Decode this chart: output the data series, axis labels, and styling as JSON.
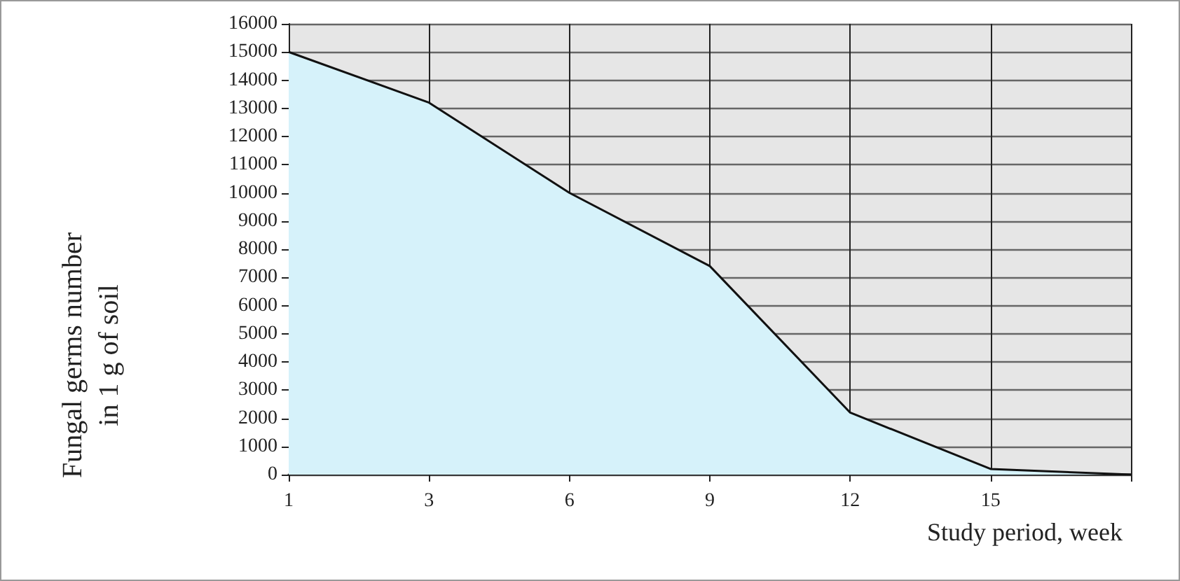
{
  "chart_data": {
    "type": "area",
    "xlabel": "Study period, week",
    "ylabel": "Fungal germs number\nin 1 g of soil",
    "categories": [
      "1",
      "3",
      "6",
      "9",
      "12",
      "15",
      null
    ],
    "series": [
      {
        "color": "#d6f2fa",
        "values": [
          15000,
          13200,
          10000,
          7400,
          2200,
          200,
          0
        ]
      }
    ],
    "ylim": [
      0,
      16000
    ],
    "yticks": [
      0,
      1000,
      2000,
      3000,
      4000,
      5000,
      6000,
      7000,
      8000,
      9000,
      10000,
      11000,
      12000,
      13000,
      14000,
      15000,
      16000
    ],
    "grid": true,
    "marker": "none",
    "line_style": "solid"
  }
}
